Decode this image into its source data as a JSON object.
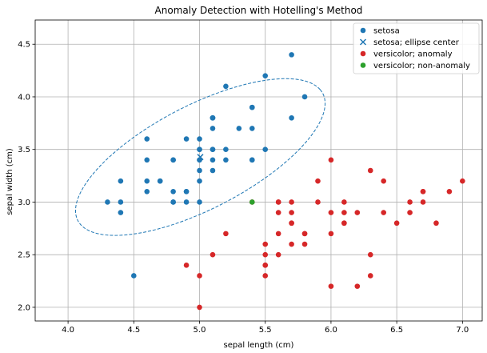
{
  "chart_data": {
    "type": "scatter",
    "title": "Anomaly Detection with Hotelling's Method",
    "xlabel": "sepal length (cm)",
    "ylabel": "sepal width (cm)",
    "xlim": [
      3.75,
      7.15
    ],
    "ylim": [
      1.87,
      4.73
    ],
    "xticks": [
      "4.0",
      "4.5",
      "5.0",
      "5.5",
      "6.0",
      "6.5",
      "7.0"
    ],
    "yticks": [
      "2.0",
      "2.5",
      "3.0",
      "3.5",
      "4.0",
      "4.5"
    ],
    "grid": true,
    "legend_position": "top-right",
    "colors": {
      "setosa": "#1f77b4",
      "anomaly": "#d62728",
      "non_anomaly": "#2ca02c",
      "ellipse": "#1f77b4",
      "grid": "#b0b0b0"
    },
    "series": [
      {
        "name": "setosa",
        "marker": "circle",
        "color": "#1f77b4",
        "points": [
          [
            5.1,
            3.5
          ],
          [
            4.9,
            3.0
          ],
          [
            4.7,
            3.2
          ],
          [
            4.6,
            3.1
          ],
          [
            5.0,
            3.6
          ],
          [
            5.4,
            3.9
          ],
          [
            4.6,
            3.4
          ],
          [
            5.0,
            3.4
          ],
          [
            4.4,
            2.9
          ],
          [
            4.9,
            3.1
          ],
          [
            5.4,
            3.7
          ],
          [
            4.8,
            3.4
          ],
          [
            4.8,
            3.0
          ],
          [
            4.3,
            3.0
          ],
          [
            5.8,
            4.0
          ],
          [
            5.7,
            4.4
          ],
          [
            5.4,
            3.9
          ],
          [
            5.1,
            3.5
          ],
          [
            5.7,
            3.8
          ],
          [
            5.1,
            3.8
          ],
          [
            5.4,
            3.4
          ],
          [
            5.1,
            3.7
          ],
          [
            4.6,
            3.6
          ],
          [
            5.1,
            3.3
          ],
          [
            4.8,
            3.4
          ],
          [
            5.0,
            3.0
          ],
          [
            5.0,
            3.4
          ],
          [
            5.2,
            3.5
          ],
          [
            5.2,
            3.4
          ],
          [
            4.7,
            3.2
          ],
          [
            4.8,
            3.1
          ],
          [
            5.4,
            3.4
          ],
          [
            5.2,
            4.1
          ],
          [
            5.5,
            4.2
          ],
          [
            4.9,
            3.1
          ],
          [
            5.0,
            3.2
          ],
          [
            5.5,
            3.5
          ],
          [
            4.9,
            3.6
          ],
          [
            4.4,
            3.0
          ],
          [
            5.1,
            3.4
          ],
          [
            5.0,
            3.5
          ],
          [
            4.5,
            2.3
          ],
          [
            4.4,
            3.2
          ],
          [
            5.0,
            3.5
          ],
          [
            5.1,
            3.8
          ],
          [
            4.8,
            3.0
          ],
          [
            5.1,
            3.8
          ],
          [
            4.6,
            3.2
          ],
          [
            5.3,
            3.7
          ],
          [
            5.0,
            3.3
          ]
        ]
      },
      {
        "name": "setosa; ellipse center",
        "marker": "x",
        "color": "#1f77b4",
        "points": [
          [
            5.006,
            3.428
          ]
        ]
      },
      {
        "name": "versicolor; anomaly",
        "marker": "circle",
        "color": "#d62728",
        "points": [
          [
            7.0,
            3.2
          ],
          [
            6.4,
            3.2
          ],
          [
            6.9,
            3.1
          ],
          [
            5.5,
            2.3
          ],
          [
            6.5,
            2.8
          ],
          [
            5.7,
            2.8
          ],
          [
            6.3,
            3.3
          ],
          [
            4.9,
            2.4
          ],
          [
            6.6,
            2.9
          ],
          [
            5.2,
            2.7
          ],
          [
            5.0,
            2.0
          ],
          [
            5.9,
            3.0
          ],
          [
            6.0,
            2.2
          ],
          [
            6.1,
            2.9
          ],
          [
            5.6,
            2.9
          ],
          [
            6.7,
            3.1
          ],
          [
            5.6,
            3.0
          ],
          [
            5.8,
            2.7
          ],
          [
            6.2,
            2.2
          ],
          [
            5.6,
            2.5
          ],
          [
            5.9,
            3.2
          ],
          [
            6.1,
            2.8
          ],
          [
            6.3,
            2.5
          ],
          [
            6.1,
            2.8
          ],
          [
            6.4,
            2.9
          ],
          [
            6.6,
            3.0
          ],
          [
            6.8,
            2.8
          ],
          [
            6.7,
            3.0
          ],
          [
            6.0,
            2.9
          ],
          [
            5.7,
            2.6
          ],
          [
            5.5,
            2.4
          ],
          [
            5.5,
            2.4
          ],
          [
            5.8,
            2.7
          ],
          [
            6.0,
            2.7
          ],
          [
            5.4,
            3.0
          ],
          [
            6.0,
            3.4
          ],
          [
            6.7,
            3.1
          ],
          [
            6.3,
            2.3
          ],
          [
            5.6,
            3.0
          ],
          [
            5.5,
            2.5
          ],
          [
            5.5,
            2.6
          ],
          [
            6.1,
            3.0
          ],
          [
            5.8,
            2.6
          ],
          [
            5.0,
            2.3
          ],
          [
            5.6,
            2.7
          ],
          [
            5.7,
            3.0
          ],
          [
            5.7,
            2.9
          ],
          [
            6.2,
            2.9
          ],
          [
            5.1,
            2.5
          ],
          [
            5.7,
            2.8
          ]
        ]
      },
      {
        "name": "versicolor; non-anomaly",
        "marker": "circle",
        "color": "#2ca02c",
        "points": [
          [
            5.4,
            3.0
          ]
        ]
      }
    ],
    "ellipse": {
      "center": [
        5.006,
        3.428
      ],
      "semi_axes": [
        1.114,
        0.463
      ],
      "angle_deg": 35.15,
      "style": "dashed"
    }
  }
}
